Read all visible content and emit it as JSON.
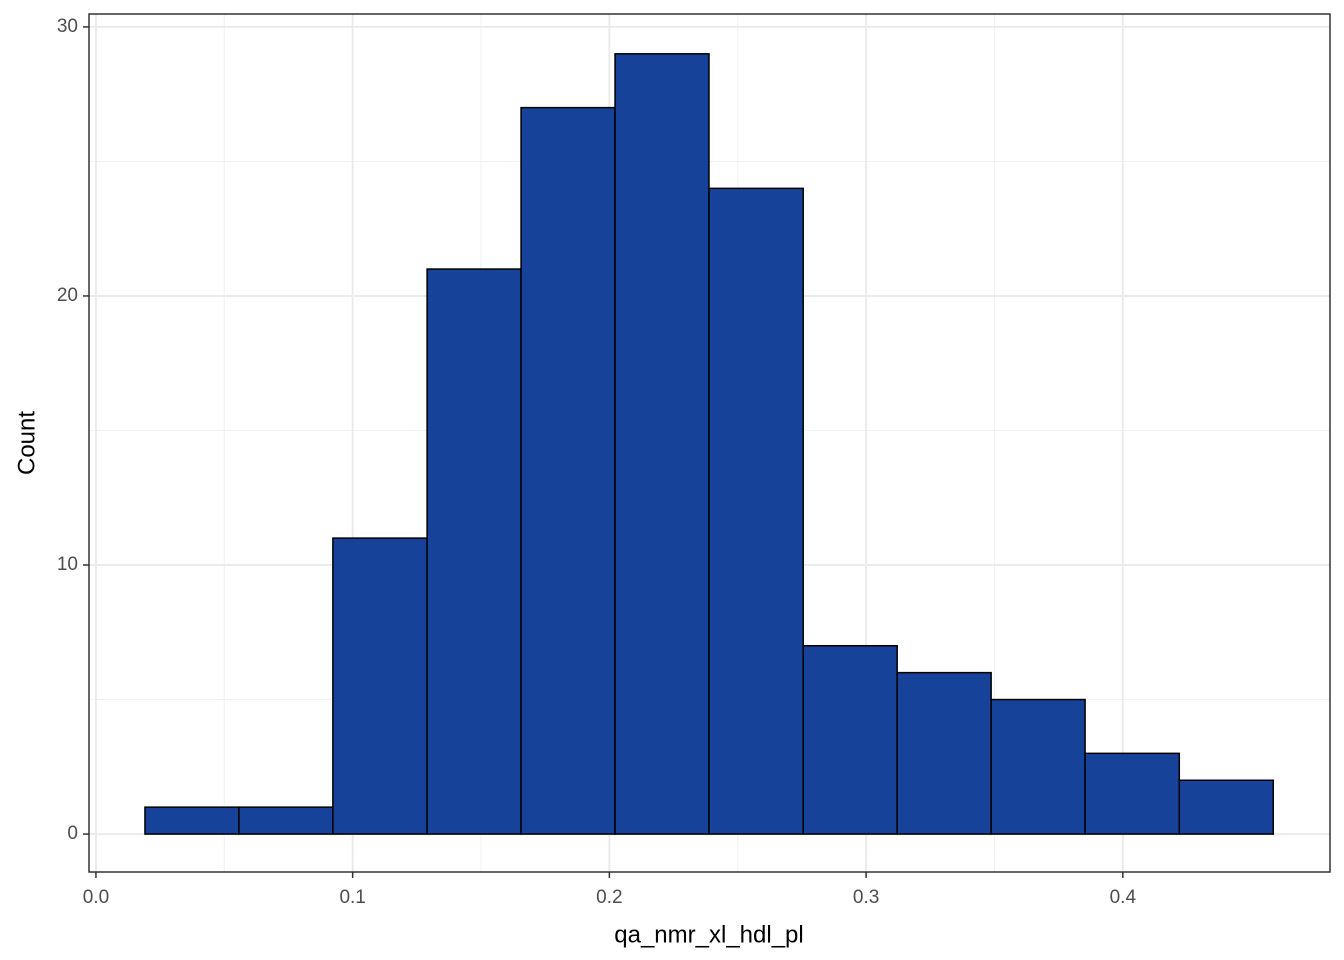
{
  "chart_data": {
    "type": "histogram",
    "x_label": "qa_nmr_xl_hdl_pl",
    "y_label": "Count",
    "bins": [
      0.0191,
      0.0557,
      0.0923,
      0.129,
      0.1656,
      0.2022,
      0.2388,
      0.2755,
      0.3121,
      0.3487,
      0.3853,
      0.422,
      0.4586
    ],
    "values": [
      1,
      1,
      11,
      21,
      27,
      29,
      24,
      7,
      6,
      5,
      3,
      2
    ],
    "color": "#17429a",
    "edge_color": "#000000",
    "xlim": [
      -0.0027,
      0.4807
    ],
    "ylim": [
      -1.41,
      30.48
    ],
    "xticks": [
      {
        "value": 0,
        "label": "0.0"
      },
      0.1,
      0.2,
      0.3,
      0.4
    ],
    "yticks": [
      0,
      10,
      20,
      30
    ],
    "grid": true
  }
}
